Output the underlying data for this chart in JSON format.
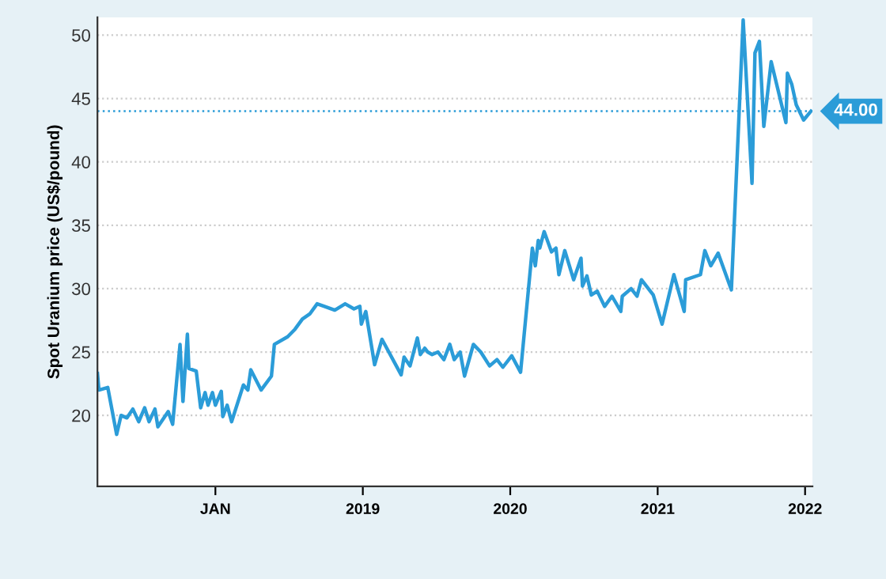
{
  "chart_data": {
    "type": "line",
    "ylabel": "Spot Uranium price (US$/pound)",
    "series": [
      {
        "color": "#2b9cd8",
        "x": [
          2017.2,
          2017.21,
          2017.27,
          2017.33,
          2017.36,
          2017.4,
          2017.44,
          2017.48,
          2017.52,
          2017.55,
          2017.59,
          2017.61,
          2017.68,
          2017.71,
          2017.76,
          2017.78,
          2017.81,
          2017.82,
          2017.87,
          2017.9,
          2017.93,
          2017.95,
          2017.98,
          2018.0,
          2018.04,
          2018.05,
          2018.08,
          2018.11,
          2018.19,
          2018.22,
          2018.24,
          2018.31,
          2018.38,
          2018.4,
          2018.49,
          2018.54,
          2018.59,
          2018.64,
          2018.69,
          2018.74,
          2018.81,
          2018.88,
          2018.94,
          2018.98,
          2018.99,
          2019.02,
          2019.08,
          2019.13,
          2019.26,
          2019.28,
          2019.32,
          2019.37,
          2019.39,
          2019.42,
          2019.44,
          2019.47,
          2019.51,
          2019.55,
          2019.59,
          2019.62,
          2019.66,
          2019.69,
          2019.75,
          2019.8,
          2019.86,
          2019.91,
          2019.95,
          2020.01,
          2020.07,
          2020.15,
          2020.17,
          2020.19,
          2020.2,
          2020.23,
          2020.28,
          2020.31,
          2020.33,
          2020.37,
          2020.43,
          2020.48,
          2020.49,
          2020.52,
          2020.55,
          2020.59,
          2020.64,
          2020.69,
          2020.75,
          2020.76,
          2020.82,
          2020.86,
          2020.89,
          2020.97,
          2021.03,
          2021.11,
          2021.18,
          2021.19,
          2021.29,
          2021.32,
          2021.36,
          2021.41,
          2021.5,
          2021.58,
          2021.64,
          2021.66,
          2021.69,
          2021.72,
          2021.77,
          2021.87,
          2021.88,
          2021.91,
          2021.94,
          2021.99,
          2022.04
        ],
        "values": [
          23.3,
          22.0,
          22.2,
          18.5,
          20.0,
          19.8,
          20.5,
          19.5,
          20.6,
          19.5,
          20.5,
          19.1,
          20.3,
          19.3,
          25.6,
          21.1,
          26.4,
          23.7,
          23.5,
          20.6,
          21.8,
          20.8,
          21.8,
          20.8,
          21.9,
          19.9,
          20.8,
          19.5,
          22.4,
          22.0,
          23.6,
          22.0,
          23.1,
          25.6,
          26.2,
          26.8,
          27.6,
          28.0,
          28.8,
          28.6,
          28.3,
          28.8,
          28.4,
          28.6,
          27.2,
          28.2,
          24.0,
          26.0,
          23.2,
          24.6,
          23.9,
          26.1,
          24.8,
          25.3,
          25.0,
          24.8,
          25.0,
          24.4,
          25.6,
          24.4,
          25.0,
          23.1,
          25.6,
          25.0,
          23.9,
          24.4,
          23.8,
          24.7,
          23.4,
          33.2,
          31.8,
          33.8,
          33.2,
          34.5,
          32.9,
          33.2,
          31.1,
          33.0,
          30.7,
          32.4,
          30.2,
          31.0,
          29.5,
          29.8,
          28.6,
          29.4,
          28.2,
          29.4,
          30.0,
          29.4,
          30.7,
          29.5,
          27.2,
          31.1,
          28.2,
          30.7,
          31.1,
          33.0,
          31.8,
          32.8,
          29.9,
          51.2,
          38.3,
          48.6,
          49.5,
          42.8,
          47.9,
          43.1,
          47.0,
          46.1,
          44.5,
          43.3,
          44.0
        ]
      }
    ],
    "xlim": [
      2017.2,
      2022.05
    ],
    "xticks": [
      {
        "value": 2018,
        "label": "JAN"
      },
      2019,
      2020,
      2021,
      2022
    ],
    "ylim": [
      14.4,
      51.4
    ],
    "yticks": [
      20,
      25,
      30,
      35,
      40,
      45,
      50
    ],
    "grid": "y",
    "legend": false,
    "ref_lines": [
      {
        "axis": "y",
        "value": 44,
        "label": "44.00",
        "color": "#2b9cd8",
        "line_style": "dotted"
      }
    ]
  }
}
